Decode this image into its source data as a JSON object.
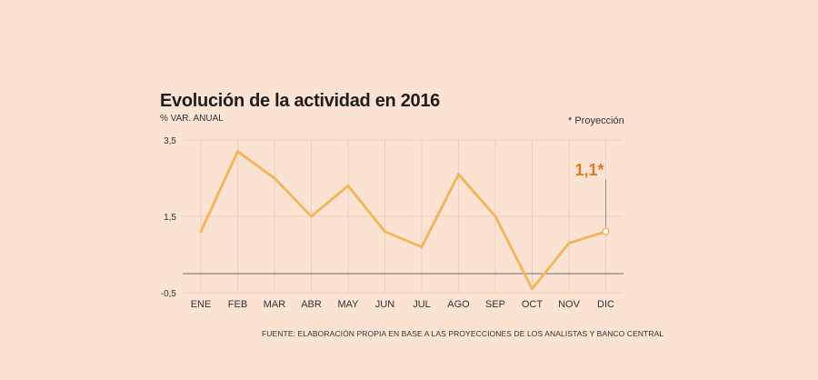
{
  "header": {
    "title": "Evolución de la actividad en 2016",
    "subtitle": "% VAR. ANUAL",
    "note": "* Proyección"
  },
  "footer": {
    "source": "FUENTE: ELABORACIÓN PROPIA EN BASE A LAS PROYECCIONES DE LOS ANALISTAS Y  BANCO CENTRAL"
  },
  "colors": {
    "background": "#fbe3d3",
    "line": "#f2b75e",
    "grid": "#efcfbd",
    "baseline": "#6b6b6b",
    "callout": "#e07a24"
  },
  "chart_data": {
    "type": "line",
    "title": "Evolución de la actividad en 2016",
    "ylabel": "% VAR. ANUAL",
    "categories": [
      "ENE",
      "FEB",
      "MAR",
      "ABR",
      "MAY",
      "JUN",
      "JUL",
      "AGO",
      "SEP",
      "OCT",
      "NOV",
      "DIC"
    ],
    "series": [
      {
        "values": [
          1.1,
          3.2,
          2.5,
          1.5,
          2.3,
          1.1,
          0.7,
          2.6,
          1.5,
          -0.4,
          0.8,
          1.1
        ]
      }
    ],
    "yticks": [
      "3,5",
      "1,5",
      "-0,5"
    ],
    "ytick_values": [
      3.5,
      1.5,
      -0.5
    ],
    "ylim": [
      -0.5,
      3.5
    ],
    "baseline": 0,
    "grid": true,
    "annotation": {
      "category": "DIC",
      "value": 1.1,
      "label": "1,1*"
    }
  }
}
